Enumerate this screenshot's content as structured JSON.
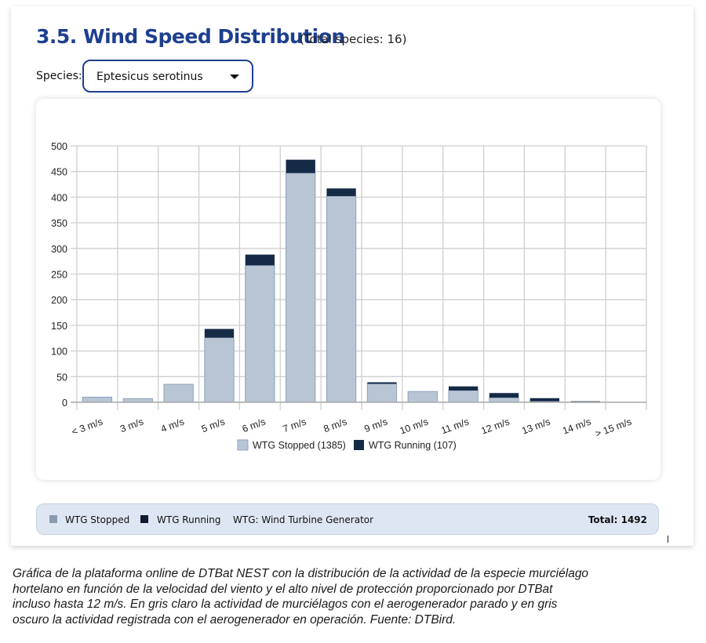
{
  "header": {
    "title": "3.5. Wind Speed Distribution",
    "subtitle": "(Total species: 16)"
  },
  "species": {
    "label": "Species:",
    "selected": "Eptesicus serotinus"
  },
  "colors": {
    "title": "#1d3f8f",
    "stopped": "#b8c5d5",
    "stopped_border": "#8fa3bc",
    "running": "#152a45",
    "grid": "#cfcfcf",
    "footer_bg": "#dfe6f3"
  },
  "chart_data": {
    "type": "bar",
    "stacked": true,
    "title": "Wind Speed Distribution",
    "xlabel": "",
    "ylabel": "",
    "ylim": [
      0,
      500
    ],
    "yticks": [
      0,
      50,
      100,
      150,
      200,
      250,
      300,
      350,
      400,
      450,
      500
    ],
    "grid": true,
    "legend_position": "bottom",
    "categories": [
      "< 3 m/s",
      "3 m/s",
      "4 m/s",
      "5 m/s",
      "6 m/s",
      "7 m/s",
      "8 m/s",
      "9 m/s",
      "10 m/s",
      "11 m/s",
      "12 m/s",
      "13 m/s",
      "14 m/s",
      "> 15 m/s"
    ],
    "series": [
      {
        "name": "WTG Stopped (1385)",
        "values": [
          10,
          7,
          35,
          126,
          267,
          447,
          402,
          36,
          21,
          23,
          9,
          2,
          0,
          0
        ]
      },
      {
        "name": "WTG Running (107)",
        "values": [
          0,
          0,
          0,
          17,
          21,
          26,
          15,
          3,
          0,
          8,
          9,
          6,
          2,
          0
        ]
      }
    ]
  },
  "legend": {
    "stopped": "WTG Stopped (1385)",
    "running": "WTG Running (107)"
  },
  "footer": {
    "stopped": "WTG Stopped",
    "running": "WTG Running",
    "note": "WTG: Wind Turbine Generator",
    "total": "Total: 1492"
  },
  "caption": {
    "lines": [
      "Gráfica de la plataforma online de DTBat NEST con la distribución de la actividad de la especie murciélago",
      "hortelano en función de la velocidad del viento y el alto nivel de protección proporcionado por DTBat",
      "incluso hasta 12 m/s. En gris claro la actividad de murciélagos con el aerogenerador parado y en gris",
      "oscuro la actividad registrada con el aerogenerador en operación. Fuente: DTBird."
    ]
  }
}
